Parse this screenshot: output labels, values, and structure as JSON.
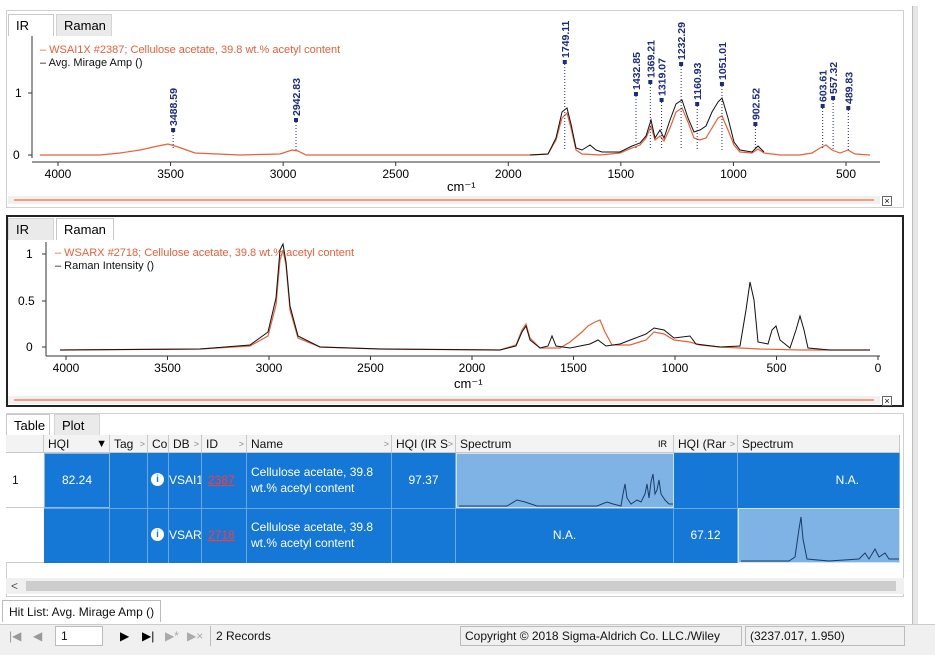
{
  "top_panel": {
    "tabs": [
      {
        "label": "IR"
      },
      {
        "label": "Raman"
      }
    ],
    "legend": {
      "series1": "– WSAI1X #2387; Cellulose acetate, 39.8 wt.% acetyl content",
      "series2": "– Avg. Mirage Amp ()"
    },
    "xlabel": "cm⁻¹",
    "x_ticks": [
      "4000",
      "3500",
      "3000",
      "2500",
      "2000",
      "1500",
      "1000",
      "500"
    ],
    "y_ticks": [
      "1",
      "0"
    ],
    "peak_labels": [
      "3488.59",
      "2942.83",
      "1749.11",
      "1432.85",
      "1369.21",
      "1319.07",
      "1232.29",
      "1160.93",
      "1051.01",
      "902.52",
      "603.61",
      "557.32",
      "489.83"
    ],
    "close_glyph": "×"
  },
  "mid_panel": {
    "tabs": [
      {
        "label": "IR"
      },
      {
        "label": "Raman"
      }
    ],
    "legend": {
      "series1": "– WSARX #2718; Cellulose acetate, 39.8 wt.% acetyl content",
      "series2": "– Raman Intensity ()"
    },
    "xlabel": "cm⁻¹",
    "x_ticks": [
      "4000",
      "3500",
      "3000",
      "2500",
      "2000",
      "1500",
      "1000",
      "500",
      "0"
    ],
    "y_ticks": [
      "1",
      "0.5",
      "0"
    ],
    "close_glyph": "×"
  },
  "bottom_panel": {
    "tabs": [
      {
        "label": "Table"
      },
      {
        "label": "Plot"
      }
    ],
    "columns": [
      "HQI",
      "Tag",
      "Co",
      "DB",
      "ID",
      "Name",
      "HQI (IR S",
      "Spectrum",
      "IR",
      "HQI (Rar",
      "Spectrum"
    ],
    "rows": [
      {
        "num": "1",
        "hqi": "82.24",
        "info": "i",
        "db": "VSAI1",
        "id": "2387",
        "name": "Cellulose acetate, 39.8 wt.% acetyl content",
        "hqi_ir": "97.37",
        "spectrum_ir": "",
        "hqi_raman": "",
        "spectrum_raman": "N.A."
      },
      {
        "num": "",
        "hqi": "",
        "info": "i",
        "db": "VSARX",
        "id": "2718",
        "name": "Cellulose acetate, 39.8 wt.% acetyl content",
        "hqi_ir": "",
        "spectrum_ir": "N.A.",
        "hqi_raman": "67.12",
        "spectrum_raman": ""
      }
    ],
    "scroll_left": "<"
  },
  "hit_list_tab": "Hit List: Avg. Mirage Amp ()",
  "nav": {
    "first": "|◀",
    "prev": "◀",
    "page": "1",
    "next": "▶",
    "last": "▶|",
    "add": "▶*",
    "del": "▶×",
    "records": "2 Records"
  },
  "copyright": "Copyright © 2018 Sigma-Aldrich Co. LLC./Wiley",
  "coords": "(3237.017, 1.950)",
  "colors": {
    "series_orange": "#e8603a",
    "series_black": "#111111",
    "selection_blue": "#1577d6"
  }
}
